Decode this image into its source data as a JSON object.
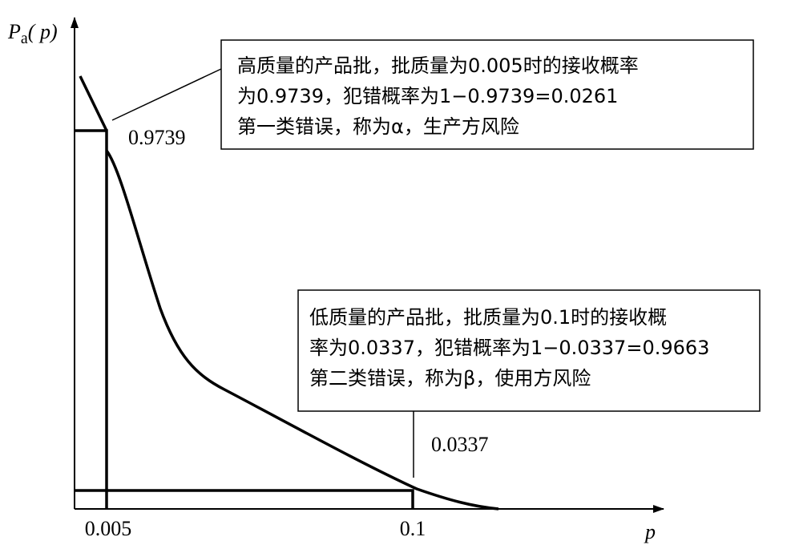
{
  "axes": {
    "y_label": {
      "symbol": "P",
      "subscript": "a",
      "argument": "( p)"
    },
    "x_label": "p",
    "x_ticks": [
      "0.005",
      "0.1"
    ]
  },
  "point_labels": [
    "0.9739",
    "0.0337"
  ],
  "annotations": [
    {
      "lines": [
        "高质量的产品批，批质量为0.005时的接收概率",
        "为0.9739，犯错概率为1−0.9739=0.0261",
        "第一类错误，称为α，生产方风险"
      ]
    },
    {
      "lines": [
        "低质量的产品批，批质量为0.1时的接收概",
        "率为0.0337，犯错概率为1−0.0337=0.9663",
        "第二类错误，称为β，使用方风险"
      ]
    }
  ]
}
